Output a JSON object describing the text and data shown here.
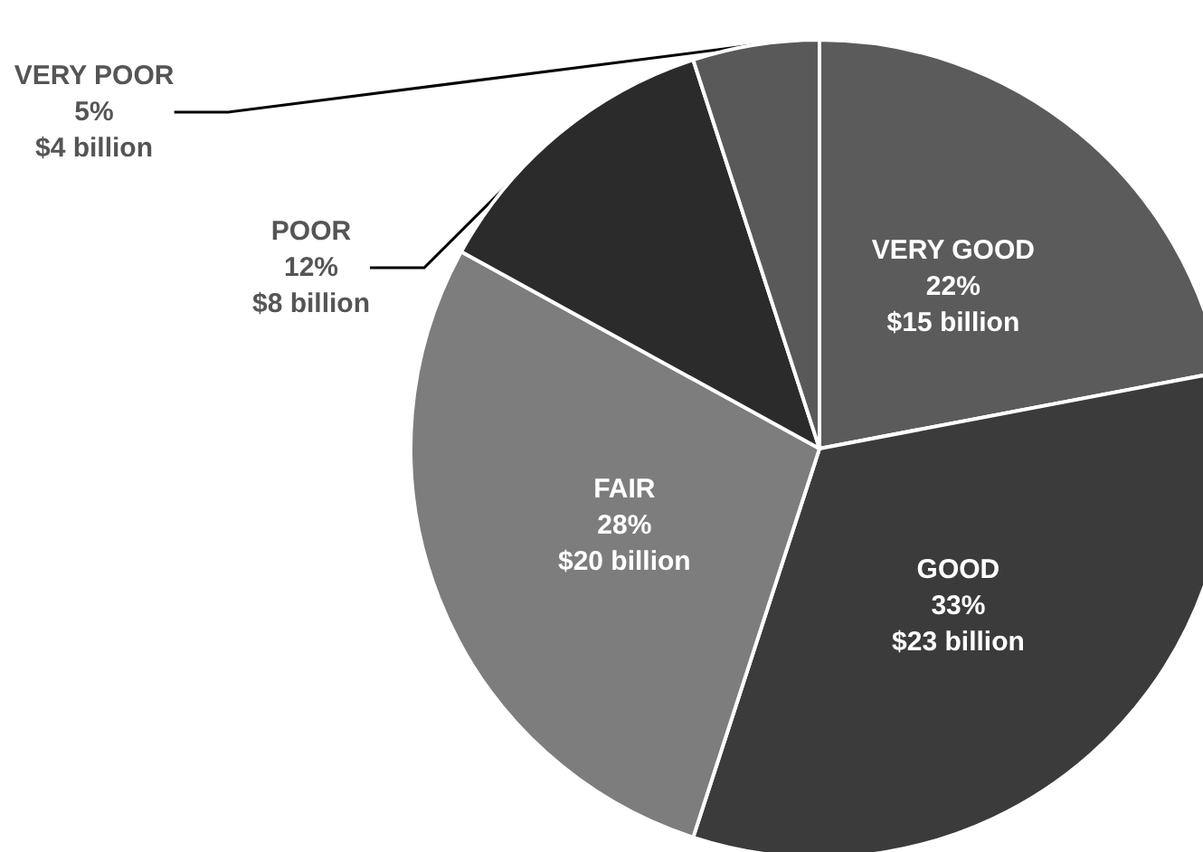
{
  "chart_data": {
    "type": "pie",
    "categories": [
      "VERY GOOD",
      "GOOD",
      "FAIR",
      "POOR",
      "VERY POOR"
    ],
    "values": [
      22,
      33,
      28,
      12,
      5
    ],
    "value_labels": [
      "22%\n$15 billion",
      "33%\n$23 billion",
      "28%\n$20 billion",
      "12%\n$8 billion",
      "5%\n$4 billion"
    ],
    "colors": [
      "#5b5b5b",
      "#3b3b3b",
      "#7d7d7d",
      "#2b2b2b",
      "#595959"
    ],
    "legend": false
  }
}
